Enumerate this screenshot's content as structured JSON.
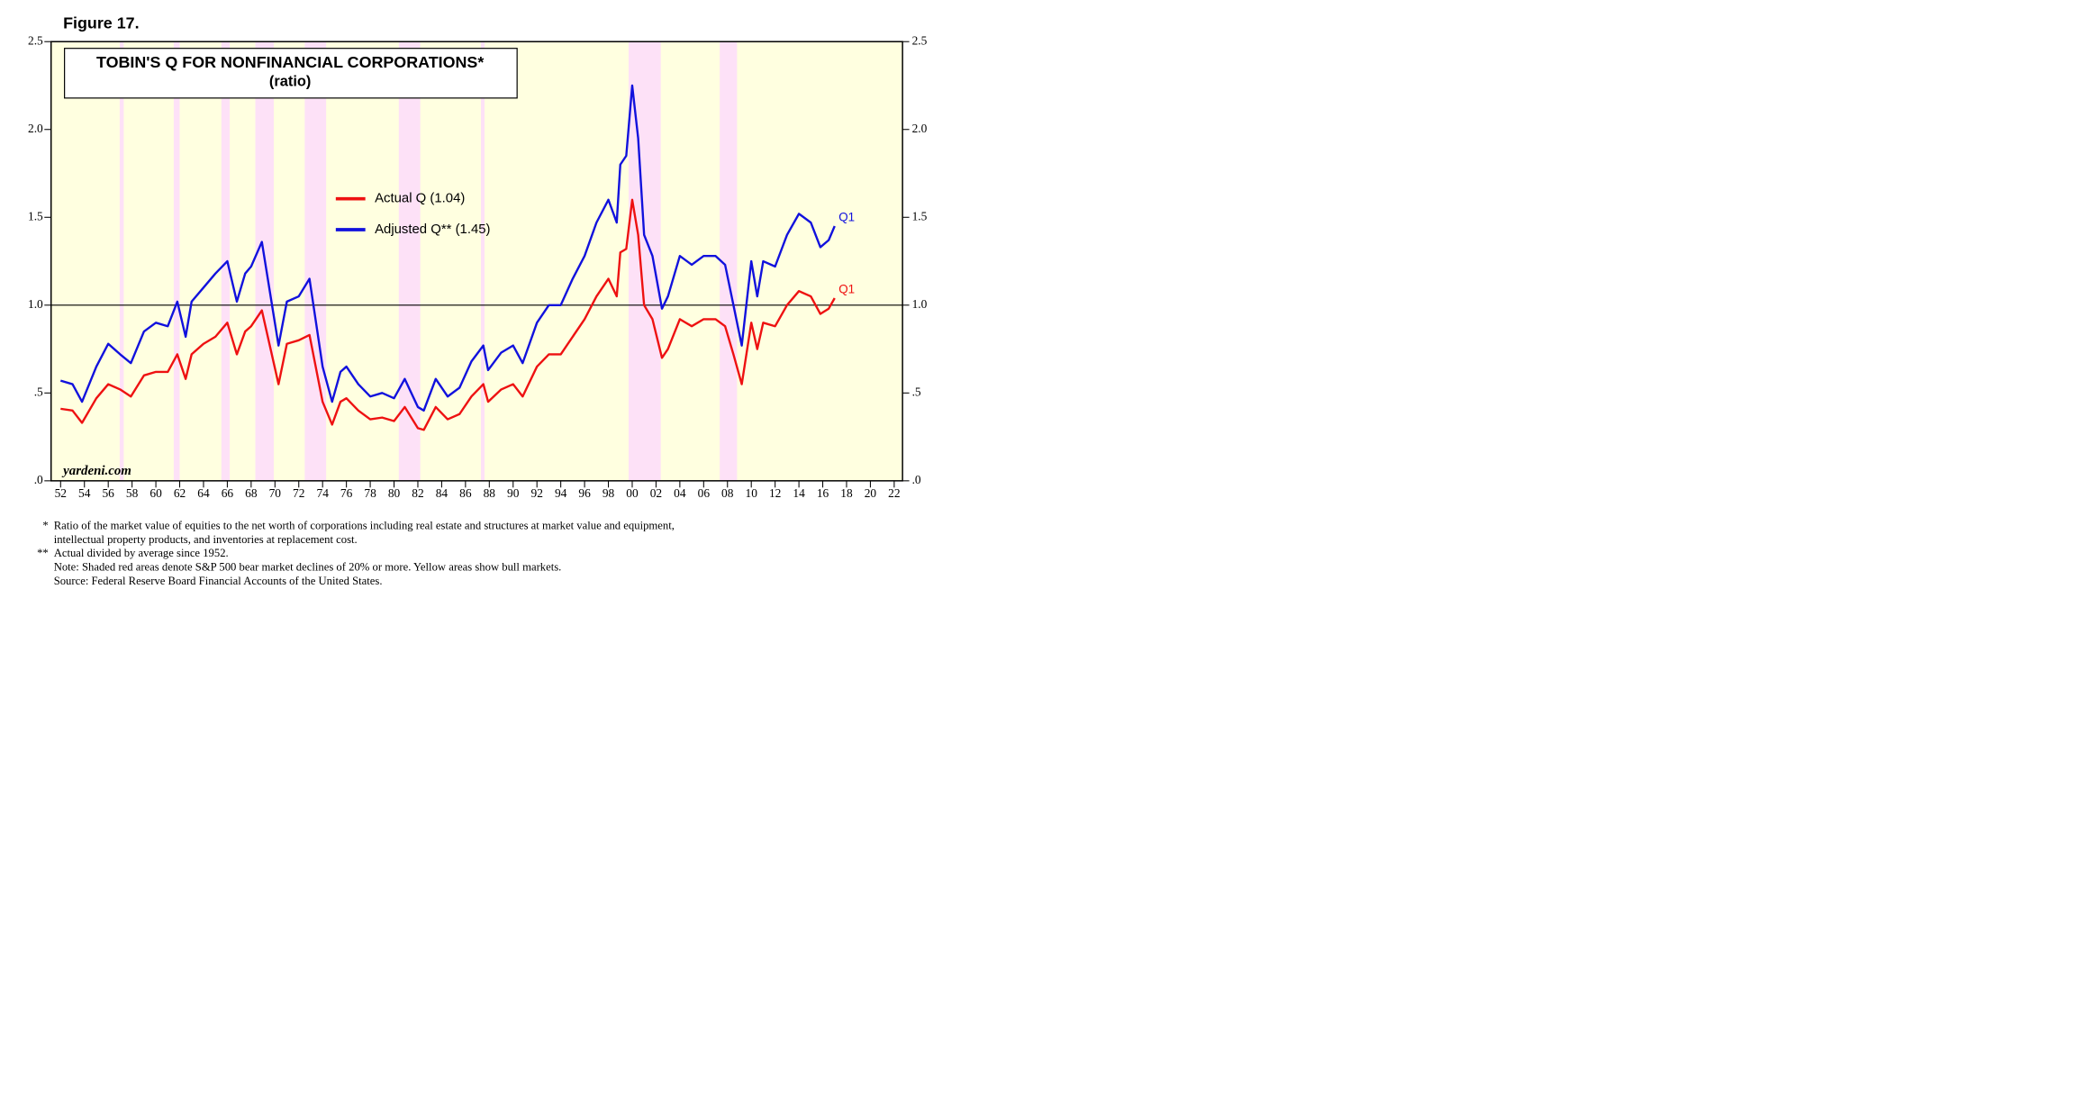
{
  "chart_data": {
    "type": "line",
    "figure_label": "Figure 17.",
    "title": "TOBIN'S Q FOR NONFINANCIAL CORPORATIONS*",
    "subtitle": "(ratio)",
    "x": [
      1952,
      1953,
      1953.8,
      1955,
      1956,
      1957,
      1957.9,
      1959,
      1960,
      1961,
      1961.8,
      1962.5,
      1963,
      1964,
      1965,
      1966,
      1966.8,
      1967.5,
      1968,
      1968.9,
      1970.3,
      1971,
      1972,
      1972.9,
      1974,
      1974.8,
      1975.5,
      1976,
      1977,
      1978,
      1979,
      1980,
      1980.9,
      1982,
      1982.5,
      1983.5,
      1984.5,
      1985.5,
      1986.5,
      1987.5,
      1987.9,
      1989,
      1990,
      1990.8,
      1992,
      1993,
      1994,
      1995,
      1996,
      1997,
      1998,
      1998.7,
      1999,
      1999.5,
      2000,
      2000.5,
      2001,
      2001.7,
      2002.5,
      2003,
      2004,
      2005,
      2006,
      2007,
      2007.8,
      2008.5,
      2009.2,
      2010,
      2010.5,
      2011,
      2012,
      2013,
      2014,
      2015,
      2015.8,
      2016.5,
      2017
    ],
    "series": [
      {
        "name": "Actual Q (1.04)",
        "color": "#ee1111",
        "end_label": "Q1",
        "values": [
          0.41,
          0.4,
          0.33,
          0.47,
          0.55,
          0.52,
          0.48,
          0.6,
          0.62,
          0.62,
          0.72,
          0.58,
          0.72,
          0.78,
          0.82,
          0.9,
          0.72,
          0.85,
          0.88,
          0.97,
          0.55,
          0.78,
          0.8,
          0.83,
          0.45,
          0.32,
          0.45,
          0.47,
          0.4,
          0.35,
          0.36,
          0.34,
          0.42,
          0.3,
          0.29,
          0.42,
          0.35,
          0.38,
          0.48,
          0.55,
          0.45,
          0.52,
          0.55,
          0.48,
          0.65,
          0.72,
          0.72,
          0.82,
          0.92,
          1.05,
          1.15,
          1.05,
          1.3,
          1.32,
          1.6,
          1.4,
          1.0,
          0.92,
          0.7,
          0.75,
          0.92,
          0.88,
          0.92,
          0.92,
          0.88,
          0.72,
          0.55,
          0.9,
          0.75,
          0.9,
          0.88,
          1.0,
          1.08,
          1.05,
          0.95,
          0.98,
          1.04
        ]
      },
      {
        "name": "Adjusted Q** (1.45)",
        "color": "#1111dd",
        "end_label": "Q1",
        "values": [
          0.57,
          0.55,
          0.45,
          0.65,
          0.78,
          0.72,
          0.67,
          0.85,
          0.9,
          0.88,
          1.02,
          0.82,
          1.02,
          1.1,
          1.18,
          1.25,
          1.02,
          1.18,
          1.22,
          1.36,
          0.77,
          1.02,
          1.05,
          1.15,
          0.65,
          0.45,
          0.62,
          0.65,
          0.55,
          0.48,
          0.5,
          0.47,
          0.58,
          0.42,
          0.4,
          0.58,
          0.48,
          0.53,
          0.68,
          0.77,
          0.63,
          0.73,
          0.77,
          0.67,
          0.9,
          1.0,
          1.0,
          1.15,
          1.28,
          1.47,
          1.6,
          1.47,
          1.8,
          1.85,
          2.25,
          1.95,
          1.4,
          1.28,
          0.98,
          1.05,
          1.28,
          1.23,
          1.28,
          1.28,
          1.23,
          1.0,
          0.77,
          1.25,
          1.05,
          1.25,
          1.22,
          1.4,
          1.52,
          1.47,
          1.33,
          1.37,
          1.45
        ]
      }
    ],
    "xlim": [
      1951.2,
      2022.7
    ],
    "xticks": [
      {
        "value": 1952,
        "label": "52"
      },
      {
        "value": 1954,
        "label": "54"
      },
      {
        "value": 1956,
        "label": "56"
      },
      {
        "value": 1958,
        "label": "58"
      },
      {
        "value": 1960,
        "label": "60"
      },
      {
        "value": 1962,
        "label": "62"
      },
      {
        "value": 1964,
        "label": "64"
      },
      {
        "value": 1966,
        "label": "66"
      },
      {
        "value": 1968,
        "label": "68"
      },
      {
        "value": 1970,
        "label": "70"
      },
      {
        "value": 1972,
        "label": "72"
      },
      {
        "value": 1974,
        "label": "74"
      },
      {
        "value": 1976,
        "label": "76"
      },
      {
        "value": 1978,
        "label": "78"
      },
      {
        "value": 1980,
        "label": "80"
      },
      {
        "value": 1982,
        "label": "82"
      },
      {
        "value": 1984,
        "label": "84"
      },
      {
        "value": 1986,
        "label": "86"
      },
      {
        "value": 1988,
        "label": "88"
      },
      {
        "value": 1990,
        "label": "90"
      },
      {
        "value": 1992,
        "label": "92"
      },
      {
        "value": 1994,
        "label": "94"
      },
      {
        "value": 1996,
        "label": "96"
      },
      {
        "value": 1998,
        "label": "98"
      },
      {
        "value": 2000,
        "label": "00"
      },
      {
        "value": 2002,
        "label": "02"
      },
      {
        "value": 2004,
        "label": "04"
      },
      {
        "value": 2006,
        "label": "06"
      },
      {
        "value": 2008,
        "label": "08"
      },
      {
        "value": 2010,
        "label": "10"
      },
      {
        "value": 2012,
        "label": "12"
      },
      {
        "value": 2014,
        "label": "14"
      },
      {
        "value": 2016,
        "label": "16"
      },
      {
        "value": 2018,
        "label": "18"
      },
      {
        "value": 2020,
        "label": "20"
      },
      {
        "value": 2022,
        "label": "22"
      }
    ],
    "ylim": [
      0,
      2.5
    ],
    "yticks": [
      {
        "value": 0,
        "label": ".0"
      },
      {
        "value": 0.5,
        "label": ".5"
      },
      {
        "value": 1,
        "label": "1.0"
      },
      {
        "value": 1.5,
        "label": "1.5"
      },
      {
        "value": 2,
        "label": "2.0"
      },
      {
        "value": 2.5,
        "label": "2.5"
      }
    ],
    "reference_line": 1,
    "background_color": "#ffffe0",
    "bear_market_color": "#fde1f7",
    "bear_markets": [
      [
        1956.96,
        1957.3
      ],
      [
        1961.5,
        1962.0
      ],
      [
        1965.5,
        1966.2
      ],
      [
        1968.35,
        1969.9
      ],
      [
        1972.5,
        1974.3
      ],
      [
        1980.4,
        1982.2
      ],
      [
        1987.3,
        1987.6
      ],
      [
        1999.7,
        2002.4
      ],
      [
        2007.35,
        2008.8
      ]
    ],
    "watermark": "yardeni.com",
    "footnotes": [
      {
        "marker": "*",
        "text": "Ratio of the market value of equities to the net worth of corporations including real estate and structures at market value and equipment,"
      },
      {
        "text": "intellectual property products, and inventories at replacement cost."
      },
      {
        "marker": "**",
        "text": "Actual divided by average since 1952."
      },
      {
        "text": "Note: Shaded red areas denote S&P 500 bear market declines of 20% or more. Yellow areas show bull markets."
      },
      {
        "text": "Source: Federal Reserve Board Financial Accounts of the United States."
      }
    ]
  }
}
